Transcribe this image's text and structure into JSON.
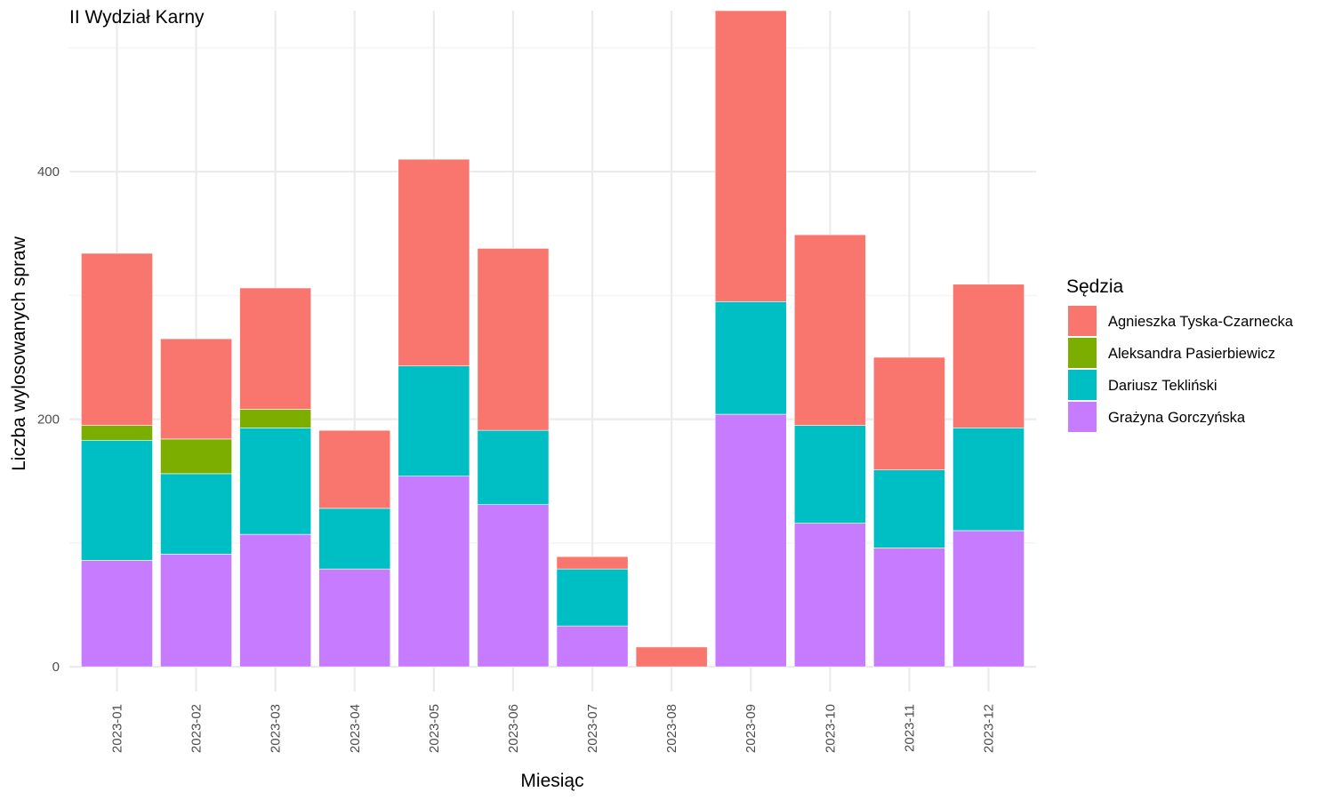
{
  "chart_data": {
    "type": "bar",
    "stacked": true,
    "title": "II Wydział Karny",
    "xlabel": "Miesiąc",
    "ylabel": "Liczba wylosowanych spraw",
    "ylim": [
      -20,
      530
    ],
    "yticks": [
      0,
      200,
      400
    ],
    "grid": true,
    "legend_position": "right",
    "legend_title": "Sędzia",
    "categories": [
      "2023-01",
      "2023-02",
      "2023-03",
      "2023-04",
      "2023-05",
      "2023-06",
      "2023-07",
      "2023-08",
      "2023-09",
      "2023-10",
      "2023-11",
      "2023-12"
    ],
    "series": [
      {
        "name": "Grażyna Gorczyńska",
        "color": "#C77CFF",
        "values": [
          86,
          91,
          107,
          79,
          154,
          131,
          33,
          0,
          204,
          116,
          96,
          110
        ]
      },
      {
        "name": "Dariusz Tekliński",
        "color": "#00BFC4",
        "values": [
          97,
          65,
          86,
          49,
          89,
          60,
          46,
          0,
          91,
          79,
          63,
          83
        ]
      },
      {
        "name": "Aleksandra Pasierbiewicz",
        "color": "#7CAE00",
        "values": [
          12,
          28,
          15,
          0,
          0,
          0,
          0,
          0,
          0,
          0,
          0,
          0
        ]
      },
      {
        "name": "Agnieszka Tyska-Czarnecka",
        "color": "#F8766D",
        "values": [
          139,
          81,
          98,
          63,
          167,
          147,
          10,
          16,
          235,
          154,
          91,
          116
        ]
      }
    ],
    "legend_order": [
      "Agnieszka Tyska-Czarnecka",
      "Aleksandra Pasierbiewicz",
      "Dariusz Tekliński",
      "Grażyna Gorczyńska"
    ]
  }
}
